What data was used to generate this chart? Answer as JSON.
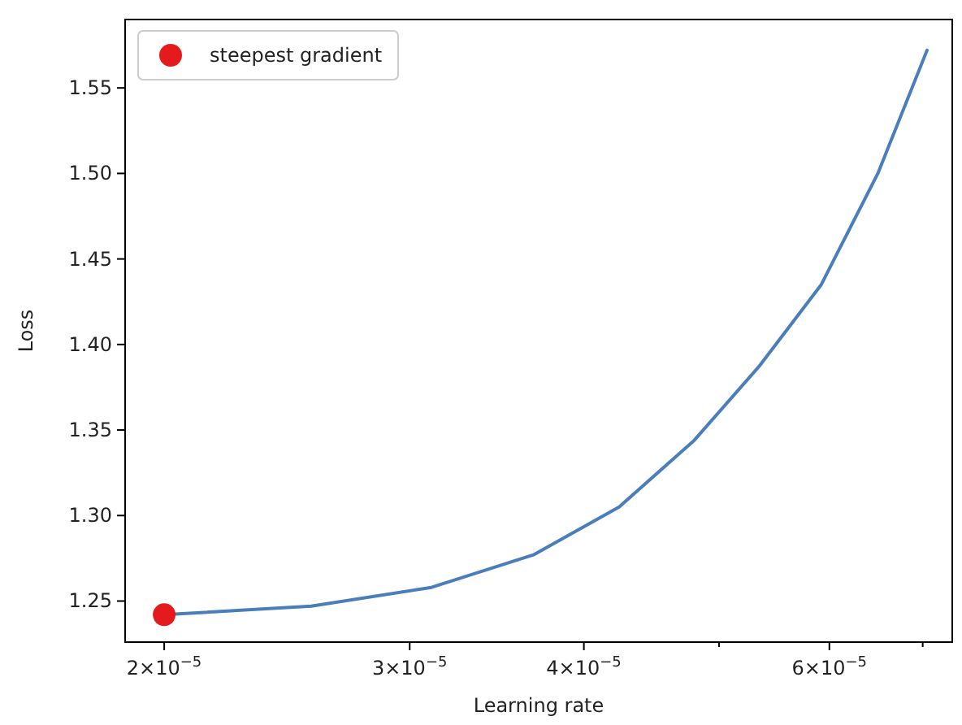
{
  "chart_data": {
    "type": "line",
    "xlabel": "Learning rate",
    "ylabel": "Loss",
    "log": "x",
    "xlim": [
      1.875e-05,
      7.35e-05
    ],
    "xticks": [
      {
        "value": 2e-05,
        "label": "2×10$^{−5}$"
      },
      {
        "value": 3e-05,
        "label": "3×10$^{−5}$"
      },
      {
        "value": 4e-05,
        "label": "4×10$^{−5}$"
      },
      {
        "value": 5e-05,
        "label": null
      },
      {
        "value": 6e-05,
        "label": "6×10$^{−5}$"
      },
      {
        "value": 7e-05,
        "label": null
      }
    ],
    "ylim": [
      1.226,
      1.59
    ],
    "yticks": [
      {
        "value": 1.25,
        "label": "1.25"
      },
      {
        "value": 1.3,
        "label": "1.30"
      },
      {
        "value": 1.35,
        "label": "1.35"
      },
      {
        "value": 1.4,
        "label": "1.40"
      },
      {
        "value": 1.45,
        "label": "1.45"
      },
      {
        "value": 1.5,
        "label": "1.50"
      },
      {
        "value": 1.55,
        "label": "1.55"
      }
    ],
    "legend": "top left",
    "series": [
      {
        "color": "#4a7ebb",
        "x": [
          2e-05,
          2.55e-05,
          3.11e-05,
          3.68e-05,
          4.24e-05,
          4.8e-05,
          5.34e-05,
          5.92e-05,
          6.5e-05,
          7.05e-05
        ],
        "values": [
          1.242,
          1.247,
          1.258,
          1.277,
          1.305,
          1.344,
          1.387,
          1.435,
          1.5,
          1.572
        ]
      },
      {
        "type": "scatter",
        "name": "steepest gradient",
        "color": "#e41a1c",
        "marker": "circle",
        "x": [
          2e-05
        ],
        "values": [
          1.242
        ]
      }
    ]
  }
}
